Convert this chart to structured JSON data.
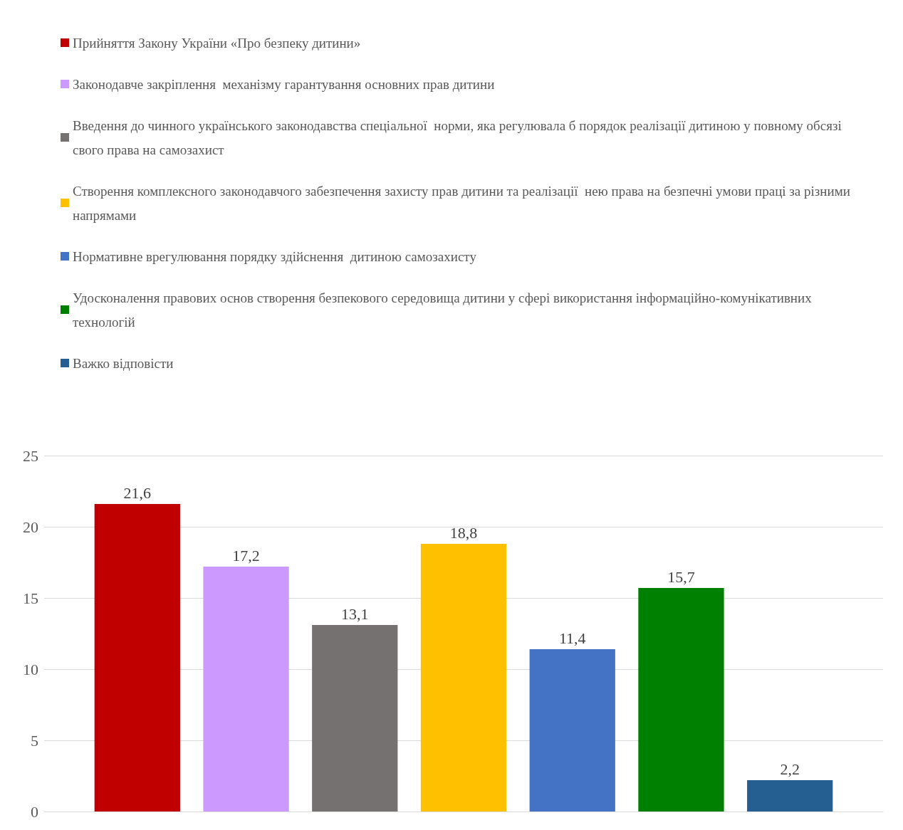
{
  "chart_data": {
    "type": "bar",
    "categories": [
      null
    ],
    "series": [
      {
        "name": "Прийняття Закону України «Про безпеку дитини»",
        "color": "#c00000",
        "values": [
          21.6
        ],
        "value_labels": [
          "21,6"
        ]
      },
      {
        "name": "Законодавче закріплення  механізму гарантування основних прав дитини",
        "color": "#cc99ff",
        "values": [
          17.2
        ],
        "value_labels": [
          "17,2"
        ]
      },
      {
        "name": "Введення до чинного українського законодавства спеціальної  норми, яка регулювала б порядок реалізації дитиною у повному обсязі свого права на самозахист",
        "color": "#767171",
        "values": [
          13.1
        ],
        "value_labels": [
          "13,1"
        ]
      },
      {
        "name": "Створення комплексного законодавчого забезпечення захисту прав дитини та реалізації  нею права на безпечні умови праці за різними напрямами",
        "color": "#ffc000",
        "values": [
          18.8
        ],
        "value_labels": [
          "18,8"
        ]
      },
      {
        "name": "Нормативне врегулювання порядку здійснення  дитиною самозахисту",
        "color": "#4472c4",
        "values": [
          11.4
        ],
        "value_labels": [
          "11,4"
        ]
      },
      {
        "name": "Удосконалення правових основ створення безпекового середовища дитини у сфері використання інформаційно-комунікативних  технологій",
        "color": "#008000",
        "values": [
          15.7
        ],
        "value_labels": [
          "15,7"
        ]
      },
      {
        "name": "Важко відповісти",
        "color": "#255e91",
        "values": [
          2.2
        ],
        "value_labels": [
          "2,2"
        ]
      }
    ],
    "ylim": [
      0,
      25
    ],
    "yticks": [
      0,
      5,
      10,
      15,
      20,
      25
    ],
    "grid": "y",
    "legend": "top",
    "tick_labels": "y"
  }
}
